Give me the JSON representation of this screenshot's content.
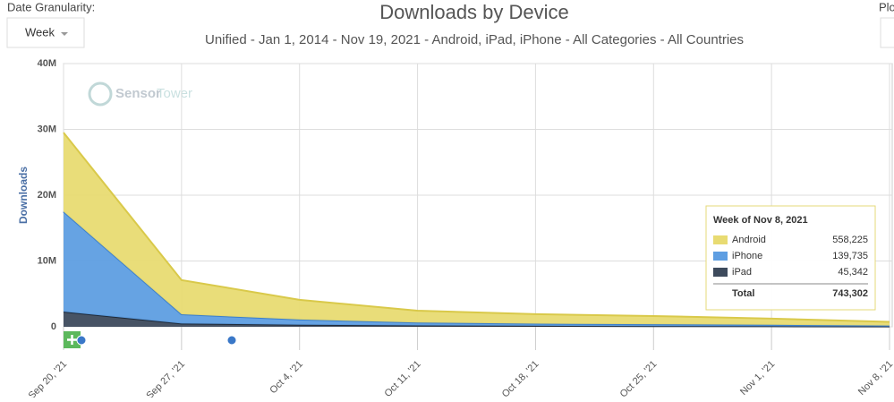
{
  "ui": {
    "granularity_label": "Date Granularity:",
    "granularity_value": "Week",
    "plot_label": "Plo",
    "watermark_a": "Sensor",
    "watermark_b": "Tower"
  },
  "chart_data": {
    "type": "stacked-area",
    "title": "Downloads by Device",
    "subtitle": "Unified - Jan 1, 2014 - Nov 19, 2021 - Android, iPad, iPhone - All Categories - All Countries",
    "y_label": "Downloads",
    "categories": [
      "Sep 20, '21",
      "Sep 27, '21",
      "Oct 4, '21",
      "Oct 11, '21",
      "Oct 18, '21",
      "Oct 25, '21",
      "Nov 1, '21",
      "Nov 8, '21"
    ],
    "series": [
      {
        "name": "Android",
        "color": "#e8db72",
        "values": [
          12000000,
          5200000,
          3000000,
          1800000,
          1450000,
          1250000,
          950000,
          558225
        ],
        "value_labels": [
          null,
          null,
          null,
          null,
          null,
          null,
          null,
          "558,225"
        ]
      },
      {
        "name": "iPhone",
        "color": "#5e9ee2",
        "values": [
          15200000,
          1400000,
          800000,
          450000,
          320000,
          280000,
          220000,
          139735
        ],
        "value_labels": [
          null,
          null,
          null,
          null,
          null,
          null,
          null,
          "139,735"
        ]
      },
      {
        "name": "iPad",
        "color": "#3d4a5c",
        "values": [
          2300000,
          500000,
          300000,
          200000,
          150000,
          110000,
          80000,
          45342
        ],
        "value_labels": [
          null,
          null,
          null,
          null,
          null,
          null,
          null,
          "45,342"
        ]
      }
    ],
    "ylim": [
      0,
      40000000
    ],
    "yticks": [
      {
        "value": 0,
        "label": "0"
      },
      {
        "value": 10000000,
        "label": "10M"
      },
      {
        "value": 20000000,
        "label": "20M"
      },
      {
        "value": 30000000,
        "label": "30M"
      },
      {
        "value": 40000000,
        "label": "40M"
      }
    ],
    "grid": true,
    "tooltip": {
      "title": "Week of Nov 8, 2021",
      "total_name": "Total",
      "total": {
        "value": 743302,
        "label": "743,302"
      }
    }
  }
}
